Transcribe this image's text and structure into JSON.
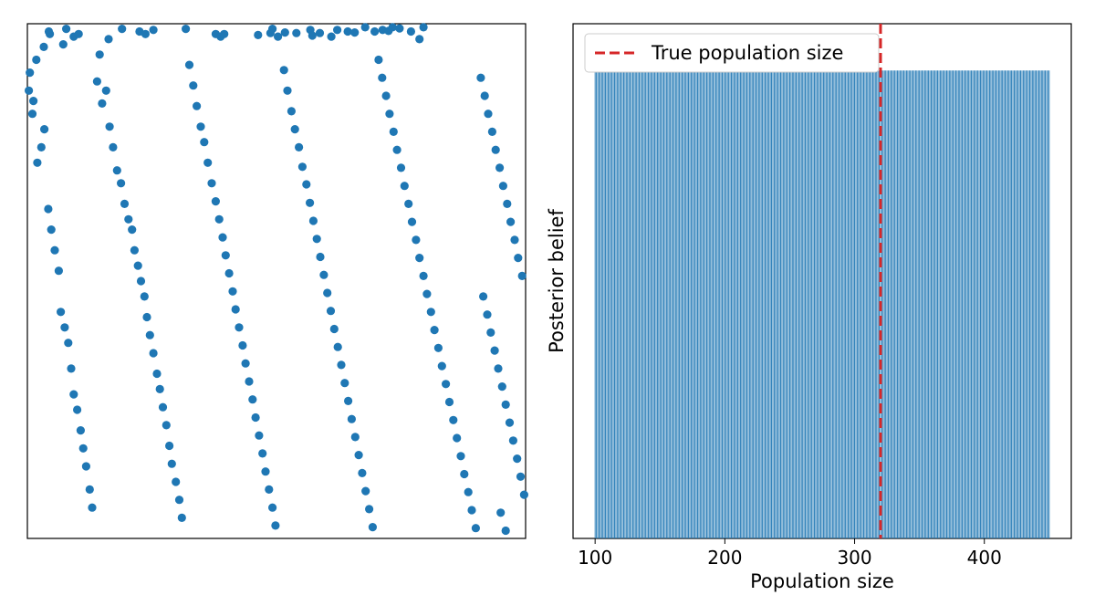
{
  "chart_data": [
    {
      "type": "scatter",
      "title": "",
      "xlabel": "",
      "ylabel": "",
      "xlim": [
        0,
        1
      ],
      "ylim": [
        0,
        1
      ],
      "axes_ticks": "none",
      "grid": false,
      "color": "#1f77b4",
      "points": [
        [
          0.005,
          0.905
        ],
        [
          0.01,
          0.825
        ],
        [
          0.018,
          0.93
        ],
        [
          0.033,
          0.955
        ],
        [
          0.043,
          0.985
        ],
        [
          0.045,
          0.98
        ],
        [
          0.072,
          0.96
        ],
        [
          0.078,
          0.99
        ],
        [
          0.093,
          0.975
        ],
        [
          0.103,
          0.98
        ],
        [
          0.145,
          0.94
        ],
        [
          0.163,
          0.97
        ],
        [
          0.19,
          0.99
        ],
        [
          0.225,
          0.985
        ],
        [
          0.237,
          0.98
        ],
        [
          0.253,
          0.988
        ],
        [
          0.318,
          0.99
        ],
        [
          0.378,
          0.98
        ],
        [
          0.388,
          0.975
        ],
        [
          0.395,
          0.98
        ],
        [
          0.463,
          0.978
        ],
        [
          0.488,
          0.982
        ],
        [
          0.492,
          0.99
        ],
        [
          0.503,
          0.975
        ],
        [
          0.517,
          0.983
        ],
        [
          0.54,
          0.982
        ],
        [
          0.568,
          0.988
        ],
        [
          0.572,
          0.977
        ],
        [
          0.587,
          0.982
        ],
        [
          0.61,
          0.975
        ],
        [
          0.622,
          0.988
        ],
        [
          0.643,
          0.985
        ],
        [
          0.657,
          0.983
        ],
        [
          0.678,
          0.993
        ],
        [
          0.697,
          0.985
        ],
        [
          0.713,
          0.988
        ],
        [
          0.725,
          0.986
        ],
        [
          0.733,
          0.993
        ],
        [
          0.747,
          0.991
        ],
        [
          0.77,
          0.985
        ],
        [
          0.787,
          0.97
        ],
        [
          0.795,
          0.993
        ],
        [
          0.003,
          0.87
        ],
        [
          0.012,
          0.85
        ],
        [
          0.02,
          0.73
        ],
        [
          0.028,
          0.76
        ],
        [
          0.034,
          0.795
        ],
        [
          0.042,
          0.64
        ],
        [
          0.048,
          0.6
        ],
        [
          0.055,
          0.56
        ],
        [
          0.063,
          0.52
        ],
        [
          0.067,
          0.44
        ],
        [
          0.075,
          0.41
        ],
        [
          0.082,
          0.38
        ],
        [
          0.088,
          0.33
        ],
        [
          0.093,
          0.28
        ],
        [
          0.1,
          0.25
        ],
        [
          0.107,
          0.21
        ],
        [
          0.112,
          0.175
        ],
        [
          0.118,
          0.14
        ],
        [
          0.125,
          0.095
        ],
        [
          0.13,
          0.06
        ],
        [
          0.14,
          0.888
        ],
        [
          0.15,
          0.845
        ],
        [
          0.158,
          0.87
        ],
        [
          0.165,
          0.8
        ],
        [
          0.172,
          0.76
        ],
        [
          0.18,
          0.715
        ],
        [
          0.188,
          0.69
        ],
        [
          0.195,
          0.65
        ],
        [
          0.203,
          0.62
        ],
        [
          0.21,
          0.6
        ],
        [
          0.215,
          0.56
        ],
        [
          0.222,
          0.53
        ],
        [
          0.228,
          0.5
        ],
        [
          0.235,
          0.47
        ],
        [
          0.24,
          0.43
        ],
        [
          0.246,
          0.395
        ],
        [
          0.253,
          0.36
        ],
        [
          0.26,
          0.32
        ],
        [
          0.266,
          0.29
        ],
        [
          0.272,
          0.255
        ],
        [
          0.279,
          0.22
        ],
        [
          0.285,
          0.18
        ],
        [
          0.29,
          0.145
        ],
        [
          0.298,
          0.11
        ],
        [
          0.305,
          0.075
        ],
        [
          0.31,
          0.04
        ],
        [
          0.325,
          0.92
        ],
        [
          0.333,
          0.88
        ],
        [
          0.34,
          0.84
        ],
        [
          0.348,
          0.8
        ],
        [
          0.355,
          0.77
        ],
        [
          0.362,
          0.73
        ],
        [
          0.37,
          0.69
        ],
        [
          0.378,
          0.655
        ],
        [
          0.385,
          0.62
        ],
        [
          0.392,
          0.585
        ],
        [
          0.398,
          0.55
        ],
        [
          0.405,
          0.515
        ],
        [
          0.412,
          0.48
        ],
        [
          0.418,
          0.445
        ],
        [
          0.425,
          0.41
        ],
        [
          0.432,
          0.375
        ],
        [
          0.438,
          0.34
        ],
        [
          0.445,
          0.305
        ],
        [
          0.452,
          0.27
        ],
        [
          0.458,
          0.235
        ],
        [
          0.465,
          0.2
        ],
        [
          0.472,
          0.165
        ],
        [
          0.478,
          0.13
        ],
        [
          0.485,
          0.095
        ],
        [
          0.492,
          0.06
        ],
        [
          0.498,
          0.025
        ],
        [
          0.515,
          0.91
        ],
        [
          0.522,
          0.87
        ],
        [
          0.53,
          0.83
        ],
        [
          0.537,
          0.795
        ],
        [
          0.545,
          0.76
        ],
        [
          0.552,
          0.722
        ],
        [
          0.56,
          0.688
        ],
        [
          0.567,
          0.652
        ],
        [
          0.574,
          0.617
        ],
        [
          0.581,
          0.582
        ],
        [
          0.588,
          0.547
        ],
        [
          0.595,
          0.512
        ],
        [
          0.602,
          0.477
        ],
        [
          0.609,
          0.442
        ],
        [
          0.616,
          0.407
        ],
        [
          0.623,
          0.372
        ],
        [
          0.63,
          0.337
        ],
        [
          0.637,
          0.302
        ],
        [
          0.644,
          0.267
        ],
        [
          0.651,
          0.232
        ],
        [
          0.658,
          0.197
        ],
        [
          0.665,
          0.162
        ],
        [
          0.672,
          0.127
        ],
        [
          0.679,
          0.092
        ],
        [
          0.686,
          0.057
        ],
        [
          0.693,
          0.022
        ],
        [
          0.705,
          0.93
        ],
        [
          0.712,
          0.895
        ],
        [
          0.72,
          0.86
        ],
        [
          0.727,
          0.825
        ],
        [
          0.735,
          0.79
        ],
        [
          0.742,
          0.755
        ],
        [
          0.75,
          0.72
        ],
        [
          0.757,
          0.685
        ],
        [
          0.765,
          0.65
        ],
        [
          0.772,
          0.615
        ],
        [
          0.78,
          0.58
        ],
        [
          0.787,
          0.545
        ],
        [
          0.795,
          0.51
        ],
        [
          0.802,
          0.475
        ],
        [
          0.81,
          0.44
        ],
        [
          0.817,
          0.405
        ],
        [
          0.825,
          0.37
        ],
        [
          0.832,
          0.335
        ],
        [
          0.84,
          0.3
        ],
        [
          0.847,
          0.265
        ],
        [
          0.855,
          0.23
        ],
        [
          0.862,
          0.195
        ],
        [
          0.87,
          0.16
        ],
        [
          0.877,
          0.125
        ],
        [
          0.885,
          0.09
        ],
        [
          0.892,
          0.055
        ],
        [
          0.9,
          0.02
        ],
        [
          0.91,
          0.895
        ],
        [
          0.918,
          0.86
        ],
        [
          0.925,
          0.825
        ],
        [
          0.933,
          0.79
        ],
        [
          0.94,
          0.755
        ],
        [
          0.948,
          0.72
        ],
        [
          0.955,
          0.685
        ],
        [
          0.963,
          0.65
        ],
        [
          0.97,
          0.615
        ],
        [
          0.978,
          0.58
        ],
        [
          0.985,
          0.545
        ],
        [
          0.993,
          0.51
        ],
        [
          0.915,
          0.47
        ],
        [
          0.923,
          0.435
        ],
        [
          0.93,
          0.4
        ],
        [
          0.938,
          0.365
        ],
        [
          0.945,
          0.33
        ],
        [
          0.953,
          0.295
        ],
        [
          0.96,
          0.26
        ],
        [
          0.968,
          0.225
        ],
        [
          0.975,
          0.19
        ],
        [
          0.983,
          0.155
        ],
        [
          0.99,
          0.12
        ],
        [
          0.997,
          0.085
        ],
        [
          0.95,
          0.05
        ],
        [
          0.96,
          0.015
        ]
      ]
    },
    {
      "type": "bar",
      "title": "",
      "xlabel": "Population size",
      "ylabel": "Posterior belief",
      "xlim": [
        83,
        467
      ],
      "ylim": [
        0,
        1.1
      ],
      "x_range": [
        100,
        450
      ],
      "value": 1,
      "xticks": [
        100,
        200,
        300,
        400
      ],
      "grid": false,
      "color": "#1f77b4",
      "true_value": 320,
      "true_value_color": "#d62728",
      "legend": {
        "placement": "top-left",
        "entries": [
          {
            "label": "True population size",
            "style": "dashed-line",
            "color": "#d62728"
          }
        ]
      }
    }
  ]
}
